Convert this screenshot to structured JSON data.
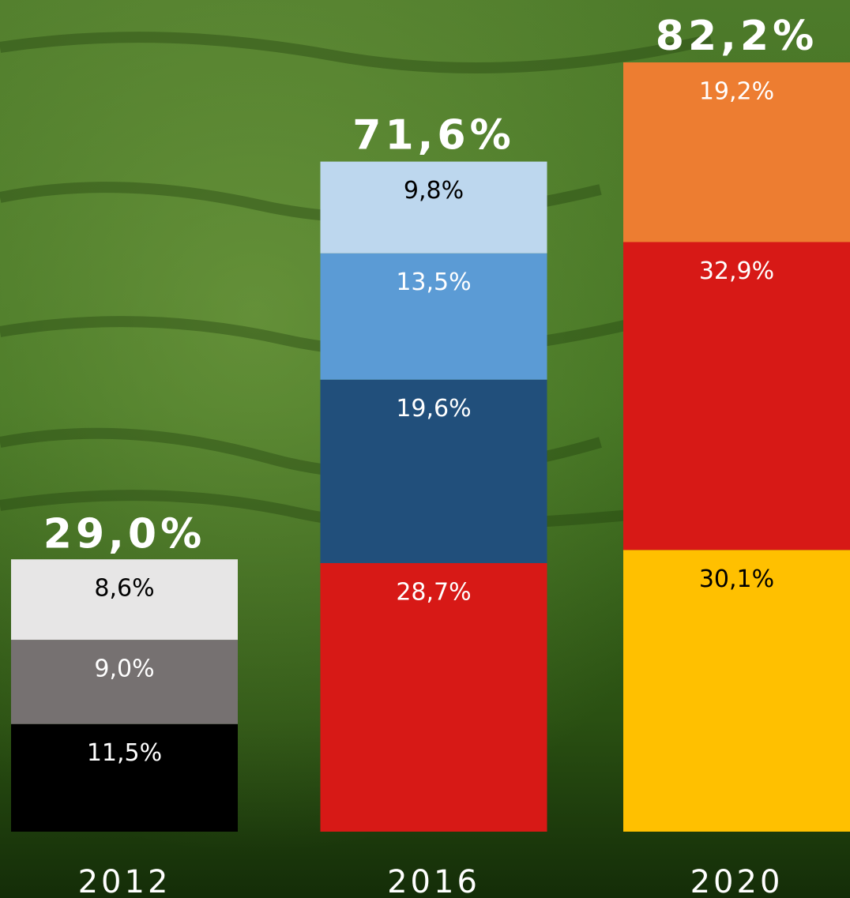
{
  "chart_data": {
    "type": "bar",
    "stacked": true,
    "categories": [
      "2012",
      "2016",
      "2020"
    ],
    "totals": [
      29.0,
      71.6,
      82.2
    ],
    "total_labels": [
      "29,0%",
      "71,6%",
      "82,2%"
    ],
    "stacks": [
      {
        "values": [
          11.5,
          9.0,
          8.6
        ],
        "value_labels": [
          "11,5%",
          "9,0%",
          "8,6%"
        ],
        "colors": [
          "#000000",
          "#767171",
          "#e7e6e6"
        ]
      },
      {
        "values": [
          28.7,
          19.6,
          13.5,
          9.8
        ],
        "value_labels": [
          "28,7%",
          "19,6%",
          "13,5%",
          "9,8%"
        ],
        "colors": [
          "#d71916",
          "#214f7b",
          "#5b9bd5",
          "#bdd7ee"
        ]
      },
      {
        "values": [
          30.1,
          32.9,
          19.2
        ],
        "value_labels": [
          "30,1%",
          "32,9%",
          "19,2%"
        ],
        "colors": [
          "#ffc000",
          "#d71916",
          "#ed7d31"
        ]
      }
    ]
  }
}
